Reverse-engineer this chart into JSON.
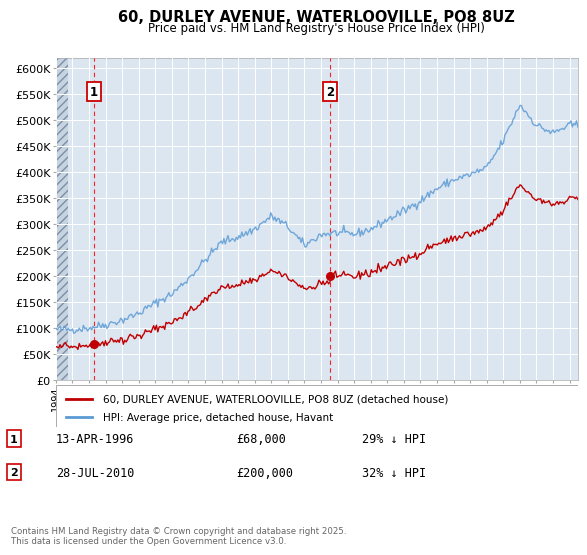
{
  "title": "60, DURLEY AVENUE, WATERLOOVILLE, PO8 8UZ",
  "subtitle": "Price paid vs. HM Land Registry's House Price Index (HPI)",
  "background_color": "#ffffff",
  "plot_bg_color": "#dce6f1",
  "grid_color": "#ffffff",
  "hpi_color": "#5b9bd5",
  "price_color": "#c00000",
  "marker_color": "#c00000",
  "sale1_x": 1996.28,
  "sale1_y": 68000,
  "sale1_label": "1",
  "sale2_x": 2010.57,
  "sale2_y": 200000,
  "sale2_label": "2",
  "dashed_line_color": "#ff0000",
  "legend_label_red": "60, DURLEY AVENUE, WATERLOOVILLE, PO8 8UZ (detached house)",
  "legend_label_blue": "HPI: Average price, detached house, Havant",
  "annotation1_date": "13-APR-1996",
  "annotation1_price": "£68,000",
  "annotation1_hpi": "29% ↓ HPI",
  "annotation2_date": "28-JUL-2010",
  "annotation2_price": "£200,000",
  "annotation2_hpi": "32% ↓ HPI",
  "footnote": "Contains HM Land Registry data © Crown copyright and database right 2025.\nThis data is licensed under the Open Government Licence v3.0.",
  "xmin": 1994.0,
  "xmax": 2025.5,
  "ylim": [
    0,
    620000
  ],
  "yticks": [
    0,
    50000,
    100000,
    150000,
    200000,
    250000,
    300000,
    350000,
    400000,
    450000,
    500000,
    550000,
    600000
  ],
  "ytick_labels": [
    "£0",
    "£50K",
    "£100K",
    "£150K",
    "£200K",
    "£250K",
    "£300K",
    "£350K",
    "£400K",
    "£450K",
    "£500K",
    "£550K",
    "£600K"
  ],
  "hpi_years": [
    1994,
    1995,
    1996,
    1997,
    1998,
    1999,
    2000,
    2001,
    2002,
    2003,
    2004,
    2005,
    2006,
    2007,
    2008,
    2009,
    2010,
    2011,
    2012,
    2013,
    2014,
    2015,
    2016,
    2017,
    2018,
    2019,
    2020,
    2021,
    2022,
    2023,
    2024,
    2025
  ],
  "hpi_values": [
    97000,
    97000,
    100000,
    106000,
    115000,
    128000,
    148000,
    165000,
    195000,
    230000,
    265000,
    275000,
    290000,
    315000,
    295000,
    258000,
    280000,
    283000,
    280000,
    290000,
    308000,
    325000,
    345000,
    368000,
    385000,
    395000,
    408000,
    460000,
    530000,
    490000,
    475000,
    490000
  ],
  "price_scale1": 0.708,
  "price_scale2": 0.727
}
